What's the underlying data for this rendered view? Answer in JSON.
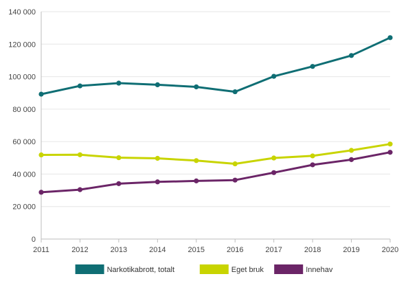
{
  "chart_data": {
    "type": "line",
    "title": "",
    "xlabel": "",
    "ylabel": "",
    "x": [
      "2011",
      "2012",
      "2013",
      "2014",
      "2015",
      "2016",
      "2017",
      "2018",
      "2019",
      "2020"
    ],
    "ylim": [
      0,
      140000
    ],
    "y_ticks": [
      {
        "value": 0,
        "label": "0"
      },
      {
        "value": 20000,
        "label": "20 000"
      },
      {
        "value": 40000,
        "label": "40 000"
      },
      {
        "value": 60000,
        "label": "60 000"
      },
      {
        "value": 80000,
        "label": "80 000"
      },
      {
        "value": 100000,
        "label": "100 000"
      },
      {
        "value": 120000,
        "label": "120 000"
      },
      {
        "value": 140000,
        "label": "140 000"
      }
    ],
    "grid": true,
    "legend_position": "bottom",
    "series": [
      {
        "name": "Narkotikabrott, totalt",
        "color": "#0f6e74",
        "values": [
          89200,
          94300,
          96000,
          95000,
          93700,
          90700,
          100200,
          106300,
          113000,
          124000
        ]
      },
      {
        "name": "Eget bruk",
        "color": "#c8d400",
        "values": [
          51800,
          51900,
          50100,
          49700,
          48300,
          46300,
          49900,
          51200,
          54600,
          58500
        ]
      },
      {
        "name": "Innehav",
        "color": "#6b2567",
        "values": [
          28800,
          30400,
          34100,
          35200,
          35800,
          36300,
          40900,
          45700,
          48900,
          53400
        ]
      }
    ]
  }
}
